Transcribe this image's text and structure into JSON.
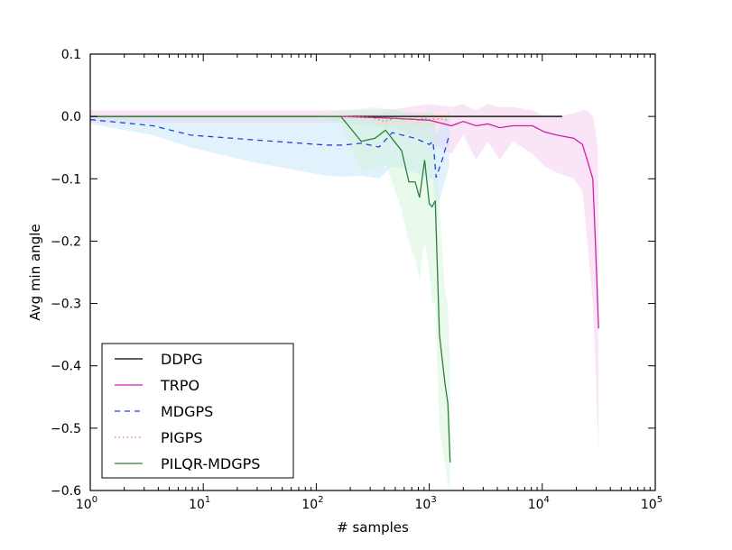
{
  "chart_data": {
    "type": "line",
    "xlabel": "# samples",
    "ylabel": "Avg min angle",
    "xscale": "log",
    "xlim": [
      1,
      100000
    ],
    "ylim": [
      -0.6,
      0.1
    ],
    "x_ticks": [
      {
        "base": "10",
        "exp": "0",
        "value": 1
      },
      {
        "base": "10",
        "exp": "1",
        "value": 10
      },
      {
        "base": "10",
        "exp": "2",
        "value": 100
      },
      {
        "base": "10",
        "exp": "3",
        "value": 1000
      },
      {
        "base": "10",
        "exp": "4",
        "value": 10000
      },
      {
        "base": "10",
        "exp": "5",
        "value": 100000
      }
    ],
    "y_ticks": [
      {
        "label": "0.1",
        "value": 0.1
      },
      {
        "label": "0.0",
        "value": 0
      },
      {
        "label": "−0.1",
        "value": -0.1
      },
      {
        "label": "−0.2",
        "value": -0.2
      },
      {
        "label": "−0.3",
        "value": -0.3
      },
      {
        "label": "−0.4",
        "value": -0.4
      },
      {
        "label": "−0.5",
        "value": -0.5
      },
      {
        "label": "−0.6",
        "value": -0.6
      }
    ],
    "grid": false,
    "legend_position": "bottom-left",
    "series": [
      {
        "name": "DDPG",
        "color": "#000000",
        "dash": "solid",
        "band_color": "#bbbbbb",
        "x": [
          1,
          10,
          100,
          1000,
          15000
        ],
        "y": [
          0,
          0,
          0,
          0,
          0
        ],
        "lower": [
          -0.002,
          -0.002,
          -0.002,
          -0.002,
          -0.002
        ],
        "upper": [
          0.002,
          0.002,
          0.002,
          0.002,
          0.002
        ]
      },
      {
        "name": "TRPO",
        "color": "#cc1fae",
        "dash": "solid",
        "band_color": "#f5c6ea",
        "x": [
          1,
          10,
          170,
          500,
          1000,
          1570,
          2000,
          2600,
          3300,
          4200,
          5500,
          8200,
          10500,
          13500,
          19000,
          22700,
          25000,
          28000,
          29500,
          30900,
          31500
        ],
        "y": [
          0,
          0,
          0,
          -0.003,
          -0.006,
          -0.015,
          -0.008,
          -0.015,
          -0.012,
          -0.018,
          -0.015,
          -0.015,
          -0.025,
          -0.03,
          -0.035,
          -0.045,
          -0.07,
          -0.1,
          -0.2,
          -0.3,
          -0.34
        ],
        "lower": [
          -0.01,
          -0.01,
          -0.01,
          -0.02,
          -0.04,
          -0.06,
          -0.03,
          -0.07,
          -0.04,
          -0.07,
          -0.04,
          -0.06,
          -0.08,
          -0.09,
          -0.1,
          -0.12,
          -0.2,
          -0.3,
          -0.4,
          -0.5,
          -0.54
        ],
        "upper": [
          0.01,
          0.01,
          0.01,
          0.012,
          0.02,
          0.015,
          0.02,
          0.01,
          0.02,
          0.015,
          0.015,
          0.01,
          0.0,
          0.0,
          0.005,
          0.01,
          0.01,
          0.0,
          -0.02,
          -0.05,
          -0.12
        ]
      },
      {
        "name": "MDGPS",
        "color": "#2a3fd8",
        "dash": "dashed",
        "band_color": "#bfe3fb",
        "x": [
          1,
          3.6,
          7.8,
          30,
          124,
          170,
          250,
          360,
          470,
          750,
          1000,
          1080,
          1150,
          1300,
          1500
        ],
        "y": [
          -0.005,
          -0.015,
          -0.03,
          -0.038,
          -0.046,
          -0.046,
          -0.043,
          -0.049,
          -0.026,
          -0.035,
          -0.045,
          -0.04,
          -0.098,
          -0.07,
          -0.03
        ],
        "lower": [
          -0.012,
          -0.03,
          -0.05,
          -0.075,
          -0.095,
          -0.097,
          -0.095,
          -0.1,
          -0.08,
          -0.09,
          -0.1,
          -0.1,
          -0.15,
          -0.12,
          -0.08
        ],
        "upper": [
          0.002,
          0.002,
          0.002,
          0.0,
          0.0,
          0.0,
          0.005,
          0.005,
          0.01,
          0.005,
          0.005,
          0.01,
          -0.03,
          -0.01,
          0.01
        ]
      },
      {
        "name": "PIGPS",
        "color": "#e07b5a",
        "dash": "dotted",
        "band_color": "#f7d5c2",
        "x": [
          1,
          10,
          100,
          300,
          400,
          500,
          600,
          700,
          800,
          900,
          1000,
          1200,
          1500
        ],
        "y": [
          0,
          0,
          0,
          -0.001,
          -0.008,
          -0.003,
          -0.005,
          -0.003,
          -0.006,
          -0.002,
          -0.005,
          -0.004,
          -0.006
        ],
        "lower": [
          -0.003,
          -0.003,
          -0.003,
          -0.006,
          -0.02,
          -0.012,
          -0.015,
          -0.012,
          -0.015,
          -0.01,
          -0.014,
          -0.012,
          -0.015
        ],
        "upper": [
          0.003,
          0.003,
          0.003,
          0.004,
          0.004,
          0.005,
          0.004,
          0.005,
          0.003,
          0.006,
          0.004,
          0.004,
          0.003
        ]
      },
      {
        "name": "PILQR-MDGPS",
        "color": "#2e7d3a",
        "dash": "solid",
        "band_color": "#cff5d8",
        "x": [
          1,
          10,
          100,
          165,
          250,
          330,
          410,
          570,
          660,
          750,
          820,
          910,
          1000,
          1060,
          1130,
          1230,
          1380,
          1460,
          1530
        ],
        "y": [
          0,
          0,
          0,
          0,
          -0.04,
          -0.035,
          -0.022,
          -0.055,
          -0.105,
          -0.105,
          -0.13,
          -0.07,
          -0.14,
          -0.145,
          -0.135,
          -0.35,
          -0.43,
          -0.46,
          -0.555
        ],
        "lower": [
          -0.002,
          -0.002,
          -0.002,
          -0.01,
          -0.09,
          -0.085,
          -0.075,
          -0.15,
          -0.2,
          -0.23,
          -0.26,
          -0.2,
          -0.25,
          -0.3,
          -0.3,
          -0.5,
          -0.56,
          -0.59,
          -0.6
        ],
        "upper": [
          0.002,
          0.002,
          0.002,
          0.01,
          0.012,
          0.015,
          0.012,
          0.01,
          0.0,
          0.0,
          -0.02,
          0.0,
          0.02,
          -0.02,
          -0.01,
          -0.15,
          -0.28,
          -0.3,
          -0.4
        ]
      }
    ]
  }
}
